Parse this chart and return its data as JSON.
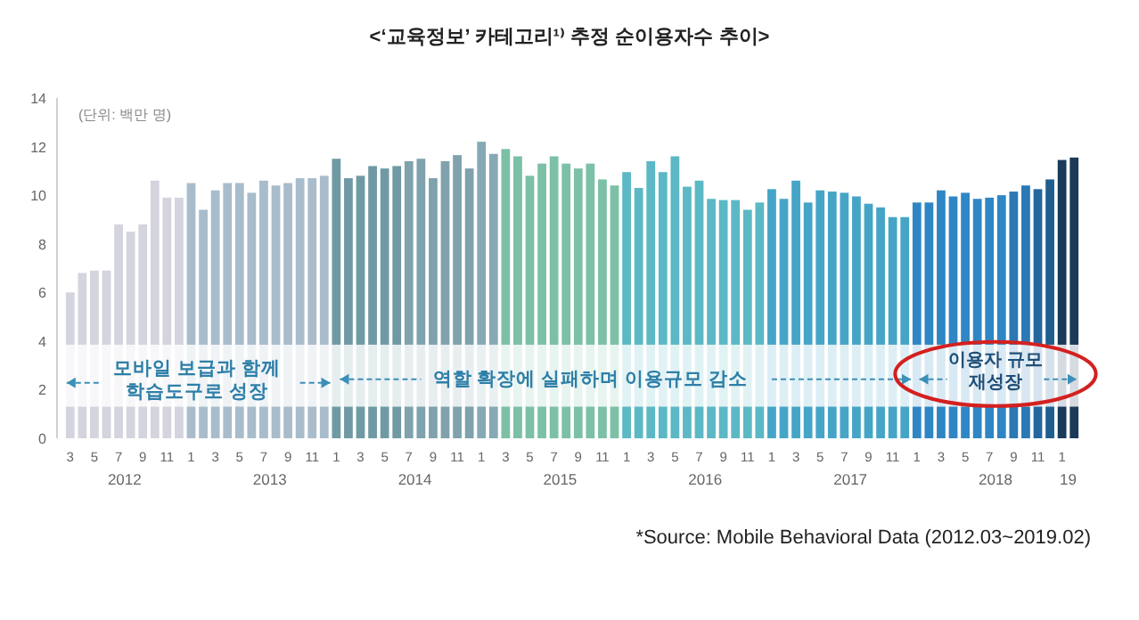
{
  "chart_data": {
    "type": "bar",
    "title": "<‘교육정보’ 카테고리¹⁾ 추정 순이용자수 추이>",
    "categories": [
      "3",
      null,
      "5",
      null,
      "7\n2012",
      null,
      "9",
      null,
      "11",
      null,
      "1",
      null,
      "3",
      null,
      "5",
      null,
      "7\n2013",
      null,
      "9",
      null,
      "11",
      null,
      "1",
      null,
      "3",
      null,
      "5",
      null,
      "7\n2014",
      null,
      "9",
      null,
      "11",
      null,
      "1",
      null,
      "3",
      null,
      "5",
      null,
      "7\n2015",
      null,
      "9",
      null,
      "11",
      null,
      "1",
      null,
      "3",
      null,
      "5",
      null,
      "7\n2016",
      null,
      "9",
      null,
      "11",
      null,
      "1",
      null,
      "3",
      null,
      "5",
      null,
      "7\n2017",
      null,
      "9",
      null,
      "11",
      null,
      "1",
      null,
      "3",
      null,
      "5",
      null,
      "7\n2018",
      null,
      "9",
      null,
      "11",
      null,
      "1\n19",
      null
    ],
    "values": [
      6.0,
      6.8,
      6.9,
      6.9,
      8.8,
      8.5,
      8.8,
      10.6,
      9.9,
      9.9,
      10.5,
      9.4,
      10.2,
      10.5,
      10.5,
      10.1,
      10.6,
      10.4,
      10.5,
      10.7,
      10.7,
      10.8,
      11.5,
      10.7,
      10.8,
      11.2,
      11.1,
      11.2,
      11.4,
      11.5,
      10.7,
      11.4,
      11.65,
      11.1,
      12.2,
      11.7,
      11.9,
      11.6,
      10.8,
      11.3,
      11.6,
      11.3,
      11.1,
      11.3,
      10.65,
      10.4,
      10.95,
      10.3,
      11.4,
      10.95,
      11.6,
      10.35,
      10.6,
      9.85,
      9.8,
      9.8,
      9.4,
      9.7,
      10.25,
      9.85,
      10.6,
      9.7,
      10.2,
      10.15,
      10.1,
      9.95,
      9.65,
      9.5,
      9.1,
      9.1,
      9.7,
      9.7,
      10.2,
      9.95,
      10.1,
      9.85,
      9.9,
      10.0,
      10.15,
      10.4,
      10.25,
      10.65,
      11.45,
      11.55
    ],
    "colors": [
      "#d4d4de",
      "#d4d4de",
      "#d4d4de",
      "#d4d4de",
      "#d4d4de",
      "#d4d4de",
      "#d4d4de",
      "#d4d4de",
      "#d4d4de",
      "#d4d4de",
      "#a8bccb",
      "#a8bccb",
      "#a8bccb",
      "#a8bccb",
      "#a8bccb",
      "#a8bccb",
      "#a8bccb",
      "#a8bccb",
      "#a8bccb",
      "#a8bccb",
      "#a8bccb",
      "#a8bccb",
      "#6f9aa4",
      "#6f9aa4",
      "#6f9aa4",
      "#6f9aa4",
      "#6f9aa4",
      "#6f9aa4",
      "#7fa2ad",
      "#7fa2ad",
      "#7fa2ad",
      "#7fa2ad",
      "#7fa2ad",
      "#7fa2ad",
      "#86a9b5",
      "#86a9b5",
      "#7cc0a6",
      "#7cc0a6",
      "#7cc0a6",
      "#7cc0a6",
      "#7cc0a6",
      "#7cc0a6",
      "#7cc0a6",
      "#7cc0a6",
      "#7cc0a6",
      "#7cc0a6",
      "#5bb8c4",
      "#5bb8c4",
      "#5bb8c4",
      "#5bb8c4",
      "#5bb8c4",
      "#5bb8c4",
      "#5bb8c4",
      "#5bb8c4",
      "#5bb8c4",
      "#5bb8c4",
      "#5bb8c4",
      "#5bb8c4",
      "#46a5c6",
      "#46a5c6",
      "#46a5c6",
      "#46a5c6",
      "#46a5c6",
      "#46a5c6",
      "#46a5c6",
      "#46a5c6",
      "#46a5c6",
      "#46a5c6",
      "#46a5c6",
      "#46a5c6",
      "#2f86c4",
      "#2f86c4",
      "#2f86c4",
      "#2f86c4",
      "#2f86c4",
      "#2f86c4",
      "#2f86c4",
      "#2f86c4",
      "#2a78b4",
      "#2a78b4",
      "#24679e",
      "#1f5f90",
      "#1b3a5a",
      "#1b3a5a"
    ],
    "ylim": [
      0,
      14
    ],
    "yticks": [
      0,
      2,
      4,
      6,
      8,
      10,
      12,
      14
    ],
    "grid": false,
    "bands": [
      {
        "axis": "y",
        "from": 1.3,
        "to": 3.85,
        "color": "#ffffff"
      }
    ],
    "annotations": [
      "(단위: 백만 명)",
      {
        "text": "모바일 보급과 함께\n학습도구로 성장",
        "y": 2.5
      },
      {
        "text": "역할 확장에 실패하며 이용규모 감소",
        "y": 2.5
      },
      {
        "text": "이용자 규모\n재성장",
        "y": 2.5
      },
      "*Source: Mobile Behavioral Data (2012.03~2019.02)"
    ]
  }
}
